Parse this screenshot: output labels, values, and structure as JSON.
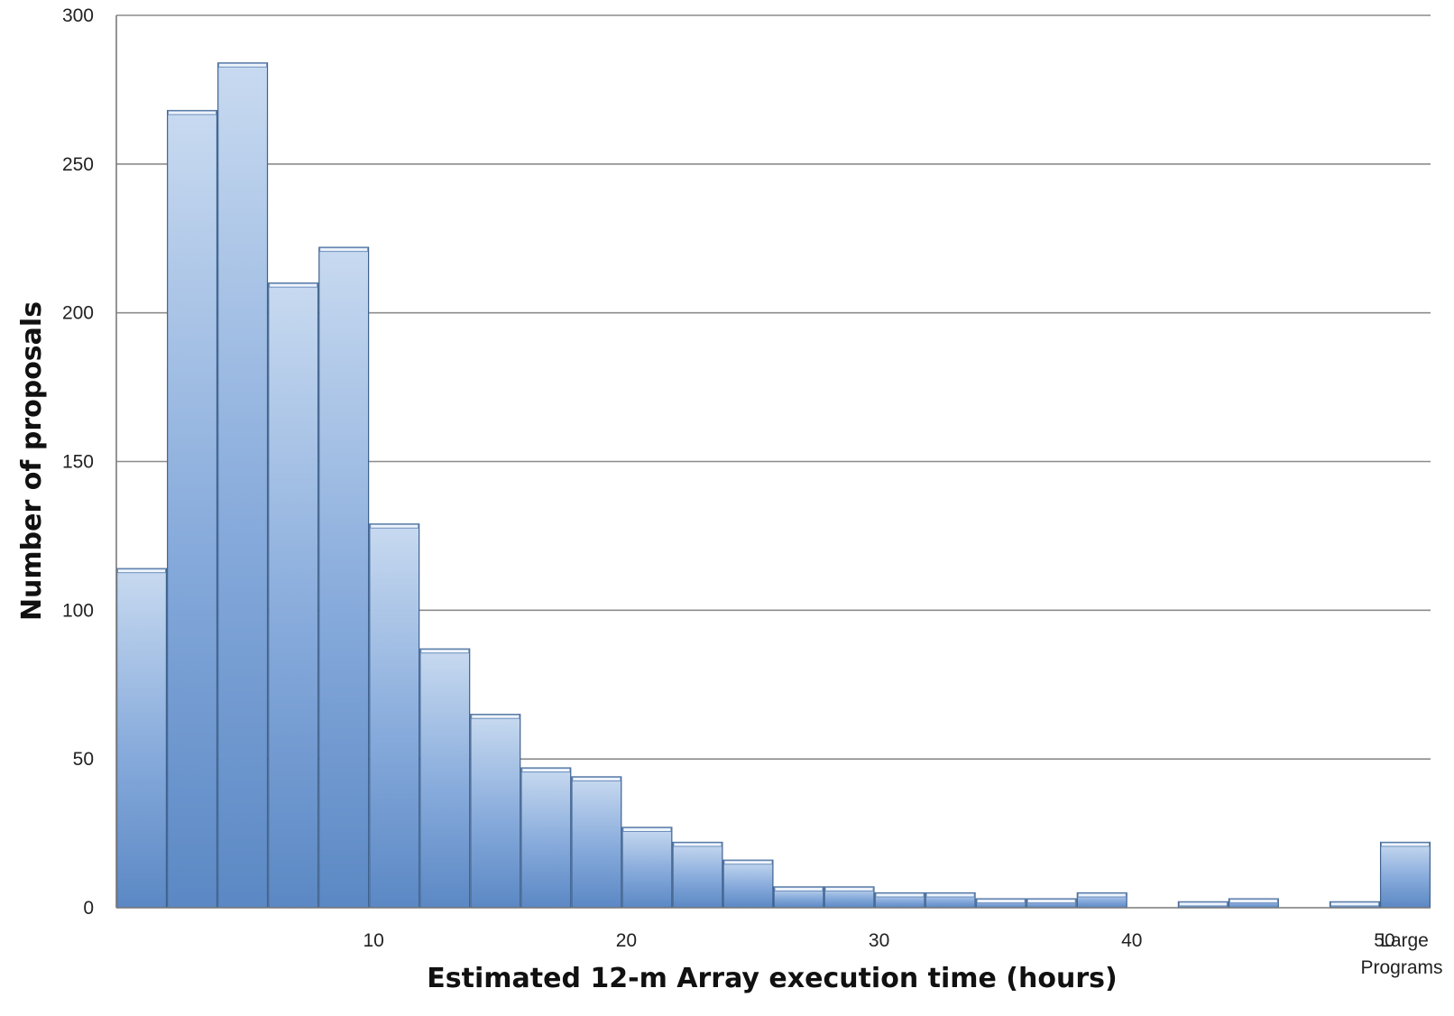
{
  "chart_data": {
    "type": "bar",
    "title": "",
    "xlabel": "Estimated 12-m Array execution time (hours)",
    "ylabel": "Number of proposals",
    "ylim": [
      0,
      300
    ],
    "y_ticks": [
      0,
      50,
      100,
      150,
      200,
      250,
      300
    ],
    "x_tick_labels": [
      "10",
      "20",
      "30",
      "40",
      "50"
    ],
    "extra_category_label": [
      "Large",
      "Programs"
    ],
    "bin_width_hours": 2,
    "categories": [
      "0-2",
      "2-4",
      "4-6",
      "6-8",
      "8-10",
      "10-12",
      "12-14",
      "14-16",
      "16-18",
      "18-20",
      "20-22",
      "22-24",
      "24-26",
      "26-28",
      "28-30",
      "30-32",
      "32-34",
      "34-36",
      "36-38",
      "38-40",
      "40-42",
      "42-44",
      "44-46",
      "46-48",
      "48-50",
      "Large Programs"
    ],
    "values": [
      114,
      268,
      284,
      210,
      222,
      129,
      87,
      65,
      47,
      44,
      27,
      22,
      16,
      7,
      7,
      5,
      5,
      3,
      3,
      5,
      0,
      2,
      3,
      0,
      2,
      22
    ],
    "grid": true,
    "colors": {
      "bar_dark": "#5b88c4",
      "bar_light": "#c3d6ee",
      "edge": "#3f628f"
    }
  }
}
